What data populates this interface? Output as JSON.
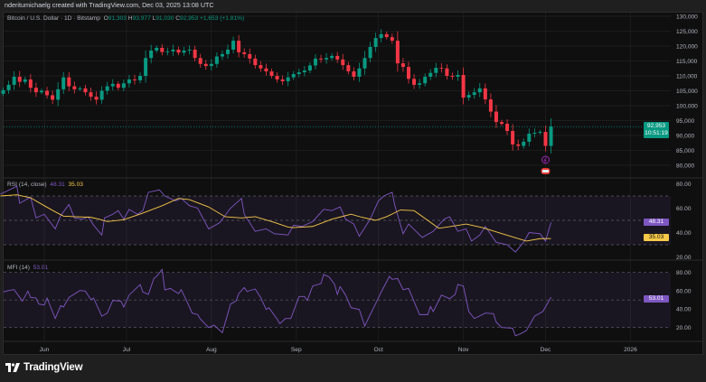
{
  "header": {
    "attribution": "nderitumichaelg created with TradingView.com, Dec 03, 2025 13:08 UTC"
  },
  "legend": {
    "symbol": "Bitcoin / U.S. Dollar · 1D · Bitstamp",
    "open_label": "O",
    "open": "91,303",
    "high_label": "H",
    "high": "93,977",
    "low_label": "L",
    "low": "91,030",
    "close_label": "C",
    "close": "92,953",
    "change": "+1,653 (+1.81%)"
  },
  "price_badge": {
    "price": "92,953",
    "countdown": "10:51:19"
  },
  "footer": {
    "brand": "TradingView"
  },
  "colors": {
    "up": "#089981",
    "down": "#f23645",
    "rsi": "#7e57c2",
    "rsi_ma": "#f7c948",
    "mfi": "#7e57c2"
  },
  "chart_data": [
    {
      "type": "candlestick",
      "title": "Bitcoin / U.S. Dollar · 1D · Bitstamp",
      "ylim": [
        78000,
        131000
      ],
      "yticks": [
        "130,000",
        "125,000",
        "120,000",
        "115,000",
        "110,000",
        "105,000",
        "100,000",
        "95,000",
        "90,000",
        "85,000",
        "80,000"
      ],
      "ytick_values": [
        130000,
        125000,
        120000,
        115000,
        110000,
        105000,
        100000,
        95000,
        90000,
        85000,
        80000
      ],
      "xticks": [
        "Jun",
        "Jul",
        "Aug",
        "Sep",
        "Oct",
        "Nov",
        "Dec",
        "2026"
      ],
      "xtick_dates": [
        "2025-06-01",
        "2025-07-01",
        "2025-08-01",
        "2025-09-01",
        "2025-10-01",
        "2025-11-01",
        "2025-12-01",
        "2026-01-01"
      ],
      "last_price": 92953,
      "dates": [
        "2025-05-17",
        "2025-05-19",
        "2025-05-21",
        "2025-05-23",
        "2025-05-25",
        "2025-05-27",
        "2025-05-29",
        "2025-05-31",
        "2025-06-02",
        "2025-06-04",
        "2025-06-06",
        "2025-06-08",
        "2025-06-10",
        "2025-06-12",
        "2025-06-14",
        "2025-06-16",
        "2025-06-18",
        "2025-06-20",
        "2025-06-22",
        "2025-06-24",
        "2025-06-26",
        "2025-06-28",
        "2025-06-30",
        "2025-07-02",
        "2025-07-04",
        "2025-07-06",
        "2025-07-08",
        "2025-07-10",
        "2025-07-12",
        "2025-07-14",
        "2025-07-16",
        "2025-07-18",
        "2025-07-20",
        "2025-07-22",
        "2025-07-24",
        "2025-07-26",
        "2025-07-28",
        "2025-07-30",
        "2025-08-01",
        "2025-08-03",
        "2025-08-05",
        "2025-08-07",
        "2025-08-09",
        "2025-08-11",
        "2025-08-13",
        "2025-08-15",
        "2025-08-17",
        "2025-08-19",
        "2025-08-21",
        "2025-08-23",
        "2025-08-25",
        "2025-08-27",
        "2025-08-29",
        "2025-08-31",
        "2025-09-02",
        "2025-09-04",
        "2025-09-06",
        "2025-09-08",
        "2025-09-10",
        "2025-09-12",
        "2025-09-14",
        "2025-09-16",
        "2025-09-18",
        "2025-09-20",
        "2025-09-22",
        "2025-09-24",
        "2025-09-26",
        "2025-09-28",
        "2025-09-30",
        "2025-10-02",
        "2025-10-04",
        "2025-10-06",
        "2025-10-08",
        "2025-10-10",
        "2025-10-12",
        "2025-10-14",
        "2025-10-16",
        "2025-10-18",
        "2025-10-20",
        "2025-10-22",
        "2025-10-24",
        "2025-10-26",
        "2025-10-28",
        "2025-10-30",
        "2025-11-01",
        "2025-11-03",
        "2025-11-05",
        "2025-11-07",
        "2025-11-09",
        "2025-11-11",
        "2025-11-13",
        "2025-11-15",
        "2025-11-17",
        "2025-11-19",
        "2025-11-21",
        "2025-11-23",
        "2025-11-25",
        "2025-11-27",
        "2025-11-29",
        "2025-12-01",
        "2025-12-03"
      ],
      "close": [
        105200,
        107000,
        109700,
        108000,
        108800,
        106000,
        104500,
        105000,
        103500,
        102000,
        105500,
        109500,
        106500,
        105500,
        105800,
        104500,
        103000,
        102000,
        105000,
        106500,
        107300,
        106000,
        107500,
        108800,
        108500,
        110000,
        116000,
        118500,
        119400,
        118000,
        118200,
        118800,
        117800,
        118500,
        118800,
        116000,
        114000,
        113300,
        114000,
        116500,
        117300,
        118800,
        121800,
        117900,
        117300,
        115800,
        113600,
        112500,
        111500,
        110000,
        108800,
        108200,
        109500,
        110600,
        111200,
        111800,
        113500,
        115800,
        115500,
        116000,
        116700,
        115500,
        113600,
        111500,
        109700,
        112500,
        116000,
        119700,
        122700,
        124000,
        123000,
        121800,
        114200,
        113000,
        109000,
        107000,
        107500,
        109700,
        111000,
        112700,
        112500,
        110000,
        109700,
        110300,
        102700,
        103600,
        104500,
        105800,
        102100,
        98000,
        94500,
        93900,
        91500,
        87000,
        86500,
        87900,
        90600,
        90900,
        91200,
        86500,
        92953
      ]
    },
    {
      "type": "line",
      "title": "RSI (14, close)",
      "ylim": [
        15,
        82
      ],
      "yticks": [
        "80.00",
        "60.00",
        "40.00",
        "20.00"
      ],
      "ytick_values": [
        80,
        60,
        40,
        20
      ],
      "bands": [
        70,
        50,
        30
      ],
      "last_values": {
        "rsi": "48.31",
        "ma": "35.03"
      },
      "rsi": {
        "dates": [
          "2025-05-16",
          "2025-05-22",
          "2025-05-23",
          "2025-05-27",
          "2025-05-29",
          "2025-06-01",
          "2025-06-05",
          "2025-06-07",
          "2025-06-10",
          "2025-06-12",
          "2025-06-15",
          "2025-06-17",
          "2025-06-19",
          "2025-06-22",
          "2025-06-23",
          "2025-06-26",
          "2025-06-28",
          "2025-06-30",
          "2025-07-02",
          "2025-07-05",
          "2025-07-07",
          "2025-07-09",
          "2025-07-13",
          "2025-07-15",
          "2025-07-19",
          "2025-07-21",
          "2025-07-24",
          "2025-07-27",
          "2025-07-31",
          "2025-08-04",
          "2025-08-08",
          "2025-08-12",
          "2025-08-13",
          "2025-08-17",
          "2025-08-21",
          "2025-08-24",
          "2025-08-29",
          "2025-08-31",
          "2025-09-03",
          "2025-09-07",
          "2025-09-11",
          "2025-09-14",
          "2025-09-17",
          "2025-09-19",
          "2025-09-22",
          "2025-09-24",
          "2025-09-28",
          "2025-10-01",
          "2025-10-03",
          "2025-10-06",
          "2025-10-07",
          "2025-10-10",
          "2025-10-12",
          "2025-10-17",
          "2025-10-21",
          "2025-10-25",
          "2025-10-27",
          "2025-10-30",
          "2025-11-02",
          "2025-11-04",
          "2025-11-07",
          "2025-11-09",
          "2025-11-13",
          "2025-11-17",
          "2025-11-20",
          "2025-11-23",
          "2025-11-25",
          "2025-11-29",
          "2025-12-01",
          "2025-12-03"
        ],
        "values": [
          71.5,
          78,
          64,
          69,
          52,
          55,
          43,
          54,
          63,
          52,
          51,
          53,
          46,
          38,
          52,
          55,
          58,
          51,
          59,
          55,
          58,
          73,
          75,
          70,
          66,
          68,
          62,
          60,
          43,
          48,
          60,
          68,
          55,
          41,
          43,
          39,
          38,
          46,
          45,
          49,
          59,
          58,
          61,
          51,
          47,
          37,
          51,
          66,
          70,
          73,
          62,
          39,
          47,
          36,
          41,
          51,
          53,
          41,
          43,
          33,
          38,
          45,
          32,
          30,
          24,
          32,
          40,
          39,
          33,
          48.31
        ]
      },
      "ma": {
        "dates": [
          "2025-05-16",
          "2025-05-22",
          "2025-05-27",
          "2025-06-01",
          "2025-06-05",
          "2025-06-08",
          "2025-06-12",
          "2025-06-18",
          "2025-06-21",
          "2025-06-24",
          "2025-06-30",
          "2025-07-07",
          "2025-07-14",
          "2025-07-20",
          "2025-07-24",
          "2025-07-31",
          "2025-08-06",
          "2025-08-12",
          "2025-08-17",
          "2025-08-23",
          "2025-08-29",
          "2025-08-31",
          "2025-09-07",
          "2025-09-14",
          "2025-09-21",
          "2025-09-25",
          "2025-09-30",
          "2025-10-04",
          "2025-10-09",
          "2025-10-14",
          "2025-10-19",
          "2025-10-23",
          "2025-10-29",
          "2025-11-02",
          "2025-11-08",
          "2025-11-16",
          "2025-11-24",
          "2025-11-29",
          "2025-12-03"
        ],
        "values": [
          70,
          71,
          68.5,
          62,
          57,
          53.5,
          53,
          52.5,
          51,
          49,
          50.5,
          56,
          62,
          68,
          67,
          61,
          53,
          52,
          53,
          49,
          44.5,
          44,
          45,
          51,
          55,
          52.5,
          50,
          53,
          58.5,
          58,
          50,
          43.5,
          45.5,
          47,
          44,
          38.5,
          33,
          35,
          35.03
        ]
      }
    },
    {
      "type": "line",
      "title": "MFI (14)",
      "ylim": [
        5,
        88
      ],
      "yticks": [
        "80.00",
        "60.00",
        "40.00",
        "20.00"
      ],
      "ytick_values": [
        80,
        60,
        40,
        20
      ],
      "bands": [
        80,
        50,
        20
      ],
      "last_value": "53.01",
      "dates": [
        "2025-05-17",
        "2025-05-19",
        "2025-05-21",
        "2025-05-24",
        "2025-05-26",
        "2025-05-27",
        "2025-05-29",
        "2025-05-30",
        "2025-06-01",
        "2025-06-02",
        "2025-06-05",
        "2025-06-07",
        "2025-06-08",
        "2025-06-10",
        "2025-06-14",
        "2025-06-16",
        "2025-06-18",
        "2025-06-19",
        "2025-06-22",
        "2025-06-24",
        "2025-06-26",
        "2025-06-29",
        "2025-06-30",
        "2025-07-02",
        "2025-07-06",
        "2025-07-07",
        "2025-07-09",
        "2025-07-11",
        "2025-07-12",
        "2025-07-14",
        "2025-07-15",
        "2025-07-17",
        "2025-07-20",
        "2025-07-21",
        "2025-07-23",
        "2025-07-25",
        "2025-07-27",
        "2025-07-28",
        "2025-07-31",
        "2025-08-02",
        "2025-08-05",
        "2025-08-08",
        "2025-08-10",
        "2025-08-11",
        "2025-08-13",
        "2025-08-14",
        "2025-08-17",
        "2025-08-19",
        "2025-08-21",
        "2025-08-22",
        "2025-08-25",
        "2025-08-26",
        "2025-08-28",
        "2025-08-30",
        "2025-09-02",
        "2025-09-04",
        "2025-09-05",
        "2025-09-07",
        "2025-09-10",
        "2025-09-11",
        "2025-09-13",
        "2025-09-15",
        "2025-09-16",
        "2025-09-17",
        "2025-09-19",
        "2025-09-21",
        "2025-09-24",
        "2025-09-26",
        "2025-09-28",
        "2025-09-30",
        "2025-10-02",
        "2025-10-05",
        "2025-10-06",
        "2025-10-08",
        "2025-10-10",
        "2025-10-12",
        "2025-10-16",
        "2025-10-19",
        "2025-10-20",
        "2025-10-21",
        "2025-10-24",
        "2025-10-27",
        "2025-10-29",
        "2025-10-30",
        "2025-11-01",
        "2025-11-03",
        "2025-11-05",
        "2025-11-09",
        "2025-11-12",
        "2025-11-13",
        "2025-11-15",
        "2025-11-19",
        "2025-11-20",
        "2025-11-22",
        "2025-11-24",
        "2025-11-27",
        "2025-11-30",
        "2025-12-03"
      ],
      "values": [
        58.7,
        60.3,
        61.3,
        48.8,
        59.7,
        52.8,
        52.1,
        45.6,
        44.6,
        52.1,
        29.8,
        43.9,
        42.3,
        52.8,
        60.3,
        59.7,
        50.5,
        52.1,
        32.4,
        35.7,
        49.5,
        48.8,
        42.3,
        55.4,
        66.9,
        58.7,
        56.1,
        73.4,
        75.7,
        83.3,
        61,
        62.6,
        57,
        61.3,
        48.8,
        35.7,
        34.1,
        29.2,
        20,
        22.6,
        14.4,
        45.6,
        48.8,
        57,
        63.6,
        59.3,
        62,
        52.8,
        39.7,
        41.6,
        29.2,
        24.2,
        29.8,
        29.8,
        53.8,
        53.8,
        49.5,
        65.2,
        67.9,
        77.7,
        75.1,
        66.9,
        56.1,
        64.6,
        55.4,
        41.6,
        39.7,
        21.6,
        34.1,
        46.2,
        58.7,
        75.7,
        72.5,
        73.4,
        61.3,
        62.6,
        34.1,
        34.1,
        42.9,
        37.4,
        55.4,
        51.5,
        56.1,
        66.9,
        65.2,
        37.4,
        29.8,
        35.7,
        35.1,
        25.9,
        20,
        19.3,
        11.1,
        13.4,
        16.7,
        32.4,
        37.4,
        53.01
      ]
    }
  ]
}
